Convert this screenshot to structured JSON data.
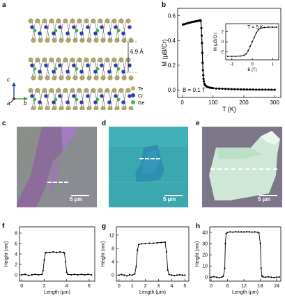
{
  "panels": {
    "a": {
      "letter": "a",
      "spacing_label": "6.9 Å",
      "axes": [
        "c",
        "a",
        "b"
      ],
      "legend": [
        {
          "label": "Te",
          "color": "#b3a66a"
        },
        {
          "label": "Cr",
          "color": "#2a3fb5"
        },
        {
          "label": "Ge",
          "color": "#44b84a"
        }
      ]
    },
    "b": {
      "letter": "b",
      "field_label": "B = 0.1 T",
      "inset_label": "T = 5 K"
    },
    "c": {
      "letter": "c",
      "scale_label": "5 µm"
    },
    "d": {
      "letter": "d",
      "scale_label": "5 µm"
    },
    "e": {
      "letter": "e",
      "scale_label": "5 µm"
    },
    "f": {
      "letter": "f"
    },
    "g": {
      "letter": "g"
    },
    "h": {
      "letter": "h"
    }
  },
  "chart_data": [
    {
      "id": "b-main",
      "type": "scatter",
      "xlabel": "T (K)",
      "ylabel": "M (μB/Cr)",
      "xlim": [
        -15,
        320
      ],
      "ylim": [
        -0.06,
        0.66
      ],
      "xticks": [
        0,
        100,
        200,
        300
      ],
      "yticks": [
        0.0,
        0.2,
        0.4,
        0.6
      ],
      "ytick_labels": [
        "0.0",
        "0.2",
        "0.4",
        "0.6"
      ],
      "x": [
        2,
        5,
        10,
        15,
        20,
        25,
        30,
        35,
        40,
        45,
        50,
        55,
        58,
        60,
        62,
        63,
        64,
        65,
        66,
        67,
        68,
        69,
        70,
        72,
        74,
        76,
        78,
        80,
        85,
        90,
        95,
        100,
        110,
        120,
        130,
        140,
        150,
        160,
        170,
        180,
        190,
        200,
        210,
        220,
        230,
        240,
        250,
        260,
        270,
        280,
        290,
        300
      ],
      "y": [
        0.53,
        0.53,
        0.535,
        0.538,
        0.542,
        0.545,
        0.548,
        0.551,
        0.553,
        0.556,
        0.558,
        0.56,
        0.565,
        0.56,
        0.5,
        0.44,
        0.38,
        0.3,
        0.22,
        0.16,
        0.12,
        0.09,
        0.07,
        0.05,
        0.04,
        0.035,
        0.03,
        0.027,
        0.022,
        0.019,
        0.017,
        0.015,
        0.012,
        0.011,
        0.01,
        0.009,
        0.008,
        0.007,
        0.006,
        0.006,
        0.005,
        0.005,
        0.004,
        0.004,
        0.004,
        0.003,
        0.003,
        0.003,
        0.003,
        0.003,
        0.002,
        0.002
      ]
    },
    {
      "id": "b-inset",
      "type": "line",
      "xlabel": "B (T)",
      "ylabel": "M (μB/Cr)",
      "xlim": [
        -1.3,
        1.3
      ],
      "ylim": [
        -3.6,
        3.6
      ],
      "xticks": [
        -1,
        0,
        1
      ],
      "yticks": [
        -2,
        0,
        2
      ],
      "x": [
        -1.2,
        -1.0,
        -0.8,
        -0.6,
        -0.4,
        -0.3,
        -0.2,
        -0.1,
        0.0,
        0.1,
        0.2,
        0.3,
        0.4,
        0.6,
        0.8,
        1.0,
        1.2
      ],
      "y": [
        -2.9,
        -2.9,
        -2.9,
        -2.85,
        -2.7,
        -2.4,
        -1.8,
        -0.9,
        0.0,
        0.9,
        1.8,
        2.4,
        2.7,
        2.85,
        2.9,
        2.9,
        2.9
      ]
    },
    {
      "id": "f",
      "type": "line",
      "xlabel": "Length (µm)",
      "ylabel": "Height (nm)",
      "xlim": [
        -0.2,
        6.5
      ],
      "ylim": [
        -1.2,
        9.2
      ],
      "xticks": [
        0,
        2,
        4,
        6
      ],
      "yticks": [
        0,
        2,
        4,
        6,
        8
      ],
      "x": [
        0.0,
        0.3,
        0.6,
        0.9,
        1.2,
        1.5,
        1.8,
        1.9,
        2.0,
        2.1,
        2.2,
        2.5,
        2.8,
        3.1,
        3.4,
        3.7,
        3.8,
        3.9,
        4.0,
        4.1,
        4.4,
        4.7,
        5.0,
        5.3,
        5.6,
        5.9,
        6.2
      ],
      "y": [
        0.0,
        0.1,
        -0.1,
        0.0,
        0.1,
        0.0,
        0.1,
        0.8,
        2.8,
        4.2,
        4.3,
        4.3,
        4.4,
        4.3,
        4.4,
        4.3,
        4.2,
        2.5,
        0.5,
        0.1,
        0.0,
        0.1,
        0.0,
        0.1,
        0.0,
        0.1,
        0.0
      ]
    },
    {
      "id": "g",
      "type": "line",
      "xlabel": "Length (µm)",
      "ylabel": "Height (nm)",
      "xlim": [
        -0.2,
        5.3
      ],
      "ylim": [
        -1.8,
        14.5
      ],
      "xticks": [
        0,
        1,
        2,
        3,
        4,
        5
      ],
      "yticks": [
        0,
        4,
        8,
        12
      ],
      "x": [
        0.0,
        0.2,
        0.4,
        0.6,
        0.8,
        1.0,
        1.2,
        1.3,
        1.4,
        1.5,
        1.7,
        2.0,
        2.3,
        2.6,
        2.9,
        3.2,
        3.5,
        3.6,
        3.7,
        3.8,
        4.0,
        4.2,
        4.4,
        4.6,
        4.8,
        5.0
      ],
      "y": [
        0.0,
        0.2,
        0.0,
        -0.2,
        0.1,
        0.0,
        0.4,
        2.5,
        7.5,
        9.2,
        9.4,
        9.5,
        9.6,
        9.6,
        9.7,
        9.8,
        9.9,
        7.0,
        1.5,
        0.2,
        0.0,
        -0.1,
        0.0,
        0.1,
        0.0,
        0.0
      ]
    },
    {
      "id": "h",
      "type": "line",
      "xlabel": "Length (µm)",
      "ylabel": "Height (nm)",
      "xlim": [
        -0.5,
        25.5
      ],
      "ylim": [
        -3.5,
        45
      ],
      "xticks": [
        0,
        6,
        12,
        18,
        24
      ],
      "yticks": [
        0,
        10,
        20,
        30,
        40
      ],
      "x": [
        0,
        1,
        2,
        3,
        4,
        4.5,
        5,
        5.2,
        5.5,
        6,
        7,
        8,
        9,
        10,
        11,
        12,
        13,
        14,
        15,
        16,
        17,
        17.5,
        18,
        18.3,
        18.6,
        19,
        20,
        21,
        22,
        23,
        24,
        25
      ],
      "y": [
        0,
        0.5,
        0,
        -0.5,
        0.2,
        1,
        8,
        30,
        39,
        40,
        40.5,
        40.3,
        40.6,
        40.4,
        40.5,
        40.4,
        40.6,
        40.5,
        40.3,
        40.5,
        40.2,
        39.5,
        30,
        8,
        1,
        0.3,
        0,
        0.4,
        0,
        -0.3,
        0,
        0.2
      ]
    }
  ]
}
